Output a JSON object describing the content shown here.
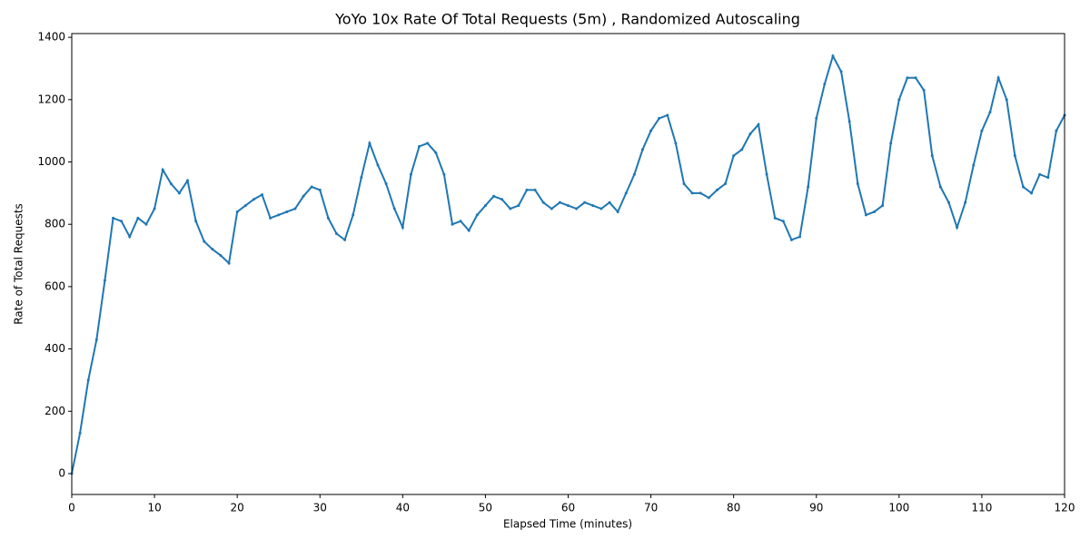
{
  "chart_data": {
    "type": "line",
    "title": "YoYo 10x Rate Of Total Requests (5m) , Randomized Autoscaling",
    "x_label": "Elapsed Time (minutes)",
    "y_label": "Rate of Total Requests",
    "x": [
      0,
      1,
      2,
      3,
      4,
      5,
      6,
      7,
      8,
      9,
      10,
      11,
      12,
      13,
      14,
      15,
      16,
      17,
      18,
      19,
      20,
      21,
      22,
      23,
      24,
      25,
      26,
      27,
      28,
      29,
      30,
      31,
      32,
      33,
      34,
      35,
      36,
      37,
      38,
      39,
      40,
      41,
      42,
      43,
      44,
      45,
      46,
      47,
      48,
      49,
      50,
      51,
      52,
      53,
      54,
      55,
      56,
      57,
      58,
      59,
      60,
      61,
      62,
      63,
      64,
      65,
      66,
      67,
      68,
      69,
      70,
      71,
      72,
      73,
      74,
      75,
      76,
      77,
      78,
      79,
      80,
      81,
      82,
      83,
      84,
      85,
      86,
      87,
      88,
      89,
      90,
      91,
      92,
      93,
      94,
      95,
      96,
      97,
      98,
      99,
      100,
      101,
      102,
      103,
      104,
      105,
      106,
      107,
      108,
      109,
      110,
      111,
      112,
      113,
      114,
      115,
      116,
      117,
      118,
      119,
      120
    ],
    "series": [
      {
        "name": "Rate of Total Requests",
        "color": "#1f77b4",
        "values": [
          0,
          130,
          300,
          430,
          620,
          820,
          810,
          760,
          820,
          800,
          850,
          975,
          930,
          900,
          940,
          810,
          745,
          720,
          700,
          675,
          840,
          860,
          880,
          895,
          820,
          830,
          840,
          850,
          890,
          920,
          910,
          820,
          770,
          750,
          830,
          950,
          1060,
          990,
          930,
          850,
          790,
          960,
          1050,
          1060,
          1030,
          960,
          800,
          810,
          780,
          830,
          860,
          890,
          880,
          850,
          860,
          910,
          910,
          870,
          850,
          870,
          860,
          850,
          870,
          860,
          850,
          870,
          840,
          900,
          960,
          1040,
          1100,
          1140,
          1150,
          1060,
          930,
          900,
          900,
          885,
          910,
          930,
          1020,
          1040,
          1090,
          1120,
          960,
          820,
          810,
          750,
          760,
          920,
          1140,
          1250,
          1340,
          1290,
          1130,
          930,
          830,
          840,
          860,
          1060,
          1200,
          1270,
          1270,
          1230,
          1020,
          920,
          870,
          790,
          870,
          990,
          1100,
          1160,
          1270,
          1200,
          1020,
          920,
          900,
          960,
          950,
          1100,
          1150
        ]
      }
    ],
    "xlim": [
      0,
      120
    ],
    "xticks": [
      0,
      10,
      20,
      30,
      40,
      50,
      60,
      70,
      80,
      90,
      100,
      110,
      120
    ],
    "ylim": [
      -67,
      1412
    ],
    "yticks": [
      0,
      200,
      400,
      600,
      800,
      1000,
      1200,
      1400
    ]
  }
}
